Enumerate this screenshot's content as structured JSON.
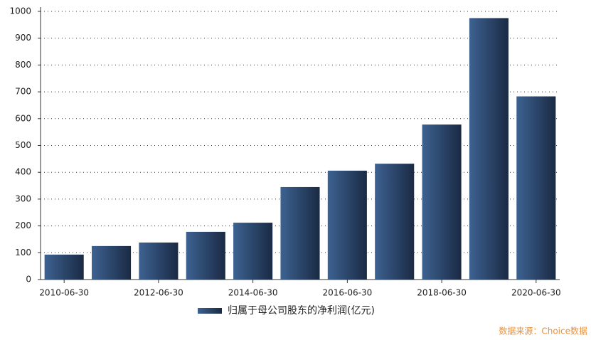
{
  "chart_data": {
    "type": "bar",
    "categories": [
      "2010-06-30",
      null,
      "2012-06-30",
      null,
      "2014-06-30",
      null,
      "2016-06-30",
      null,
      "2018-06-30",
      null,
      "2020-06-30"
    ],
    "series": [
      {
        "name": "归属于母公司股东的净利润(亿元)",
        "color": "#3d6291",
        "values": [
          93,
          125,
          138,
          178,
          212,
          345,
          406,
          432,
          578,
          975,
          683
        ]
      }
    ],
    "ylim": [
      0,
      1000
    ],
    "yticks": [
      0,
      100,
      200,
      300,
      400,
      500,
      600,
      700,
      800,
      900,
      1000
    ],
    "grid": true,
    "legend": "bottom",
    "source": "数据来源：Choice数据"
  }
}
